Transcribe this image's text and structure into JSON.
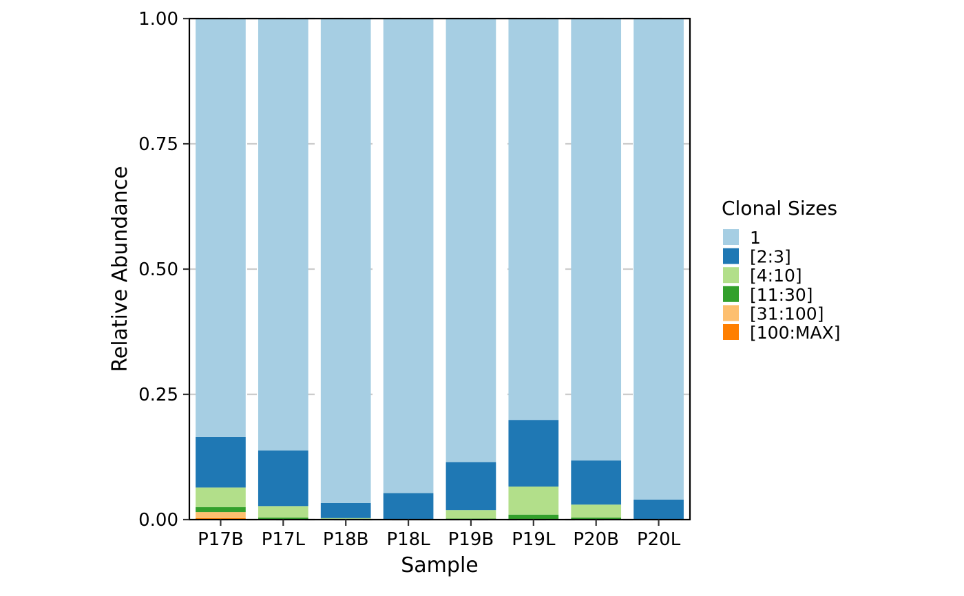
{
  "chart_data": {
    "type": "bar",
    "stacked": true,
    "xlabel": "Sample",
    "ylabel": "Relative Abundance",
    "ylim": [
      0,
      1
    ],
    "yticks": [
      "0.00",
      "0.25",
      "0.50",
      "0.75",
      "1.00"
    ],
    "ytick_values": [
      0,
      0.25,
      0.5,
      0.75,
      1.0
    ],
    "grid": "horizontal dashed",
    "legend": {
      "title": "Clonal Sizes",
      "placement": "right"
    },
    "categories": [
      "P17B",
      "P17L",
      "P18B",
      "P18L",
      "P19B",
      "P19L",
      "P20B",
      "P20L"
    ],
    "series": [
      {
        "name": "[100:MAX]",
        "color": "#FF7F00",
        "values": [
          0.003,
          0.0,
          0.0,
          0.0,
          0.0,
          0.0,
          0.0,
          0.0
        ]
      },
      {
        "name": "[31:100]",
        "color": "#FDBF6F",
        "values": [
          0.012,
          0.0,
          0.0,
          0.0,
          0.0,
          0.0,
          0.0,
          0.0
        ]
      },
      {
        "name": "[11:30]",
        "color": "#33A02C",
        "values": [
          0.01,
          0.004,
          0.001,
          0.0,
          0.002,
          0.01,
          0.004,
          0.0
        ]
      },
      {
        "name": "[4:10]",
        "color": "#B2DF8A",
        "values": [
          0.039,
          0.023,
          0.002,
          0.0,
          0.017,
          0.056,
          0.026,
          0.001
        ]
      },
      {
        "name": "[2:3]",
        "color": "#1F78B4",
        "values": [
          0.101,
          0.111,
          0.03,
          0.053,
          0.096,
          0.133,
          0.088,
          0.039
        ]
      },
      {
        "name": "1",
        "color": "#A6CEE3",
        "values": [
          0.835,
          0.862,
          0.967,
          0.947,
          0.885,
          0.801,
          0.882,
          0.96
        ]
      }
    ],
    "legend_order": [
      "1",
      "[2:3]",
      "[4:10]",
      "[11:30]",
      "[31:100]",
      "[100:MAX]"
    ]
  }
}
